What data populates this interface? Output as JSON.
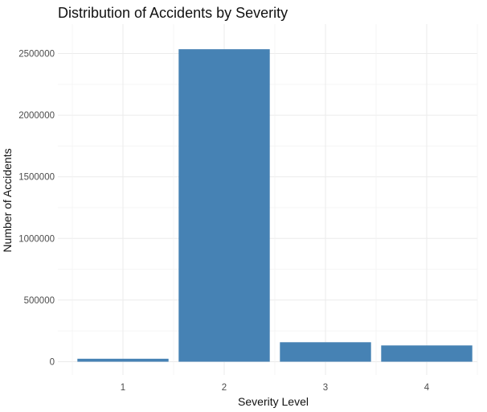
{
  "chart_data": {
    "type": "bar",
    "title": "Distribution of Accidents by Severity",
    "xlabel": "Severity Level",
    "ylabel": "Number of Accidents",
    "categories": [
      "1",
      "2",
      "3",
      "4"
    ],
    "values": [
      24000,
      2535000,
      158000,
      132000
    ],
    "ylim": [
      0,
      2660000
    ],
    "yticks": [
      0,
      500000,
      1000000,
      1500000,
      2000000,
      2500000
    ],
    "ytick_labels": [
      "0",
      "500000",
      "1000000",
      "1500000",
      "2000000",
      "2500000"
    ],
    "grid": true,
    "bar_color": "#4682B4",
    "background": "#ffffff",
    "legend": "none"
  }
}
